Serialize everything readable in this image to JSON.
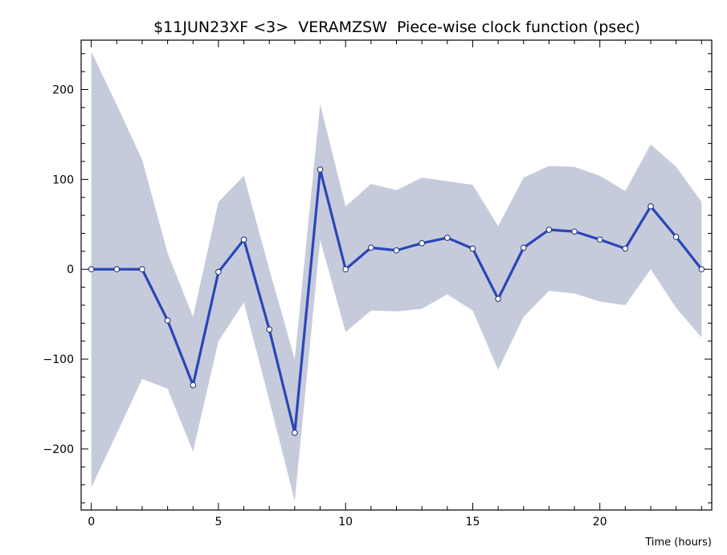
{
  "chart_data": {
    "type": "line",
    "title": "$11JUN23XF <3>  VERAMZSW  Piece-wise clock function (psec)",
    "xlabel": "Time (hours)",
    "ylabel": "",
    "xlim": [
      -0.4,
      24.4
    ],
    "ylim": [
      -268,
      255
    ],
    "x_ticks": [
      0,
      5,
      10,
      15,
      20
    ],
    "y_ticks": [
      -200,
      -100,
      0,
      100,
      200
    ],
    "grid": false,
    "legend": "none",
    "colors": {
      "line": "#2a46b8",
      "band": "#c6cbdc",
      "axis": "#000000",
      "marker_fill": "#ffffff"
    },
    "x": [
      0,
      1,
      2,
      3,
      4,
      5,
      6,
      7,
      8,
      9,
      10,
      11,
      12,
      13,
      14,
      15,
      16,
      17,
      18,
      19,
      20,
      21,
      22,
      23,
      24
    ],
    "series": [
      {
        "values": [
          0,
          0,
          0,
          -57,
          -129,
          -3,
          33,
          -67,
          -182,
          111,
          0,
          24,
          21,
          29,
          35,
          23,
          -33,
          24,
          44,
          42,
          33,
          23,
          70,
          36,
          0
        ]
      }
    ],
    "band_upper": [
      242,
      183,
      122,
      18,
      -53,
      75,
      104,
      0,
      -100,
      184,
      70,
      95,
      88,
      102,
      98,
      94,
      48,
      102,
      115,
      114,
      104,
      87,
      139,
      114,
      75
    ],
    "band_lower": [
      -243,
      -183,
      -122,
      -133,
      -203,
      -80,
      -37,
      -146,
      -258,
      33,
      -70,
      -46,
      -47,
      -44,
      -28,
      -46,
      -112,
      -53,
      -24,
      -27,
      -36,
      -40,
      0,
      -43,
      -76
    ]
  }
}
